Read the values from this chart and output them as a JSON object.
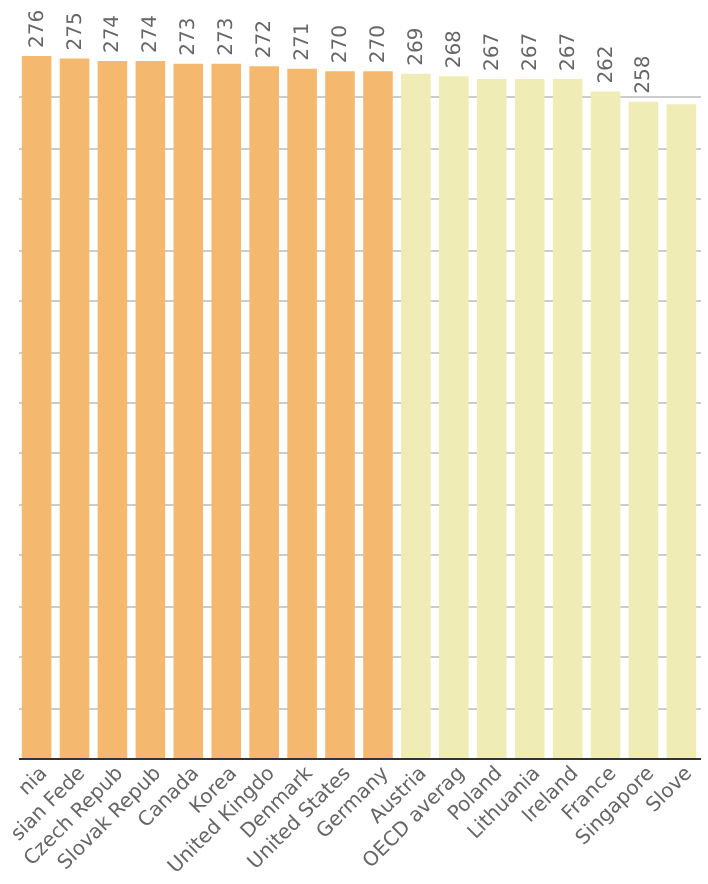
{
  "chart_data": {
    "type": "bar",
    "categories": [
      "nia",
      "sian Fede",
      "Czech Repub",
      "Slovak Repub",
      "Canada",
      "Korea",
      "United Kingdo",
      "Denmark",
      "United States",
      "Germany",
      "Austria",
      "OECD averag",
      "Poland",
      "Lithuania",
      "Ireland",
      "France",
      "Singapore",
      "Slove"
    ],
    "values": [
      276,
      275,
      274,
      274,
      273,
      273,
      272,
      271,
      270,
      270,
      269,
      268,
      267,
      267,
      267,
      262,
      258,
      257
    ],
    "colors": [
      "#f4b96e",
      "#f4b96e",
      "#f4b96e",
      "#f4b96e",
      "#f4b96e",
      "#f4b96e",
      "#f4b96e",
      "#f4b96e",
      "#f4b96e",
      "#f4b96e",
      "#efedb5",
      "#efedb5",
      "#efedb5",
      "#efedb5",
      "#efedb5",
      "#efedb5",
      "#efedb5",
      "#efedb5"
    ],
    "value_labels": [
      "276",
      "275",
      "274",
      "274",
      "273",
      "273",
      "272",
      "271",
      "270",
      "270",
      "269",
      "268",
      "267",
      "267",
      "267",
      "262",
      "258",
      null
    ],
    "grid": "y",
    "tick_labels": "x"
  }
}
